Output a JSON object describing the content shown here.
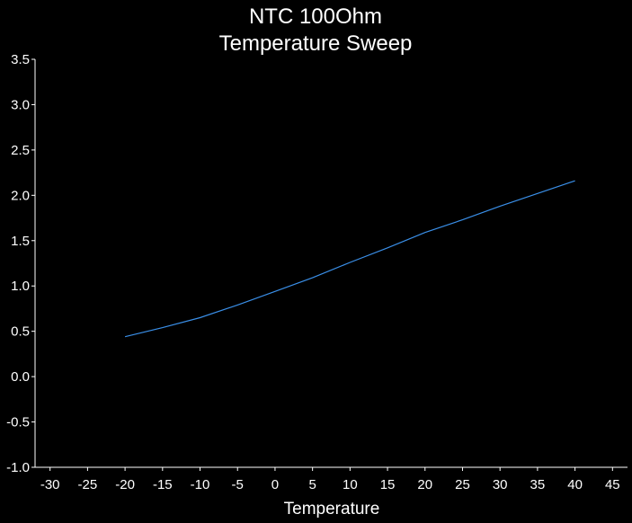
{
  "chart_data": {
    "type": "line",
    "title": "NTC 100Ohm",
    "subtitle": "Temperature Sweep",
    "xlabel": "Temperature",
    "ylabel": "",
    "xlim": [
      -32,
      47
    ],
    "ylim": [
      -1.0,
      3.5
    ],
    "x_ticks": [
      -30,
      -25,
      -20,
      -15,
      -10,
      -5,
      0,
      5,
      10,
      15,
      20,
      25,
      30,
      35,
      40,
      45
    ],
    "y_ticks": [
      3.5,
      3.0,
      2.5,
      2.0,
      1.5,
      1.0,
      0.5,
      0.0,
      -0.5,
      -1.0
    ],
    "y_tick_labels": [
      "3.5",
      "3.0",
      "2.5",
      "2.0",
      "1.5",
      "1.0",
      "0.5",
      "0.0",
      "-0.5",
      "-1.0"
    ],
    "grid": false,
    "background": "#000000",
    "axis_color": "#ffffff",
    "series": [
      {
        "color": "#3a8fe8",
        "x": [
          -20,
          -15,
          -10,
          -5,
          0,
          5,
          10,
          15,
          20,
          25,
          30,
          35,
          40
        ],
        "y": [
          0.44,
          0.54,
          0.65,
          0.79,
          0.94,
          1.09,
          1.26,
          1.42,
          1.59,
          1.73,
          1.88,
          2.02,
          2.16
        ]
      }
    ]
  }
}
